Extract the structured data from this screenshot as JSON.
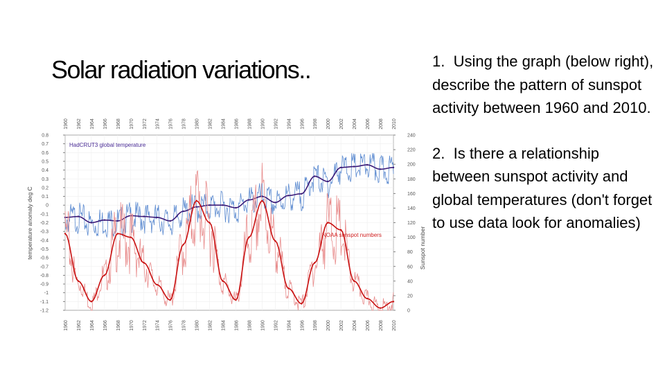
{
  "slide": {
    "title": "Solar radiation variations..",
    "questions": [
      {
        "number": "1.",
        "text": "Using the graph (below right), describe the pattern of sunspot activity between 1960 and 2010."
      },
      {
        "number": "2.",
        "text": "Is there a relationship between sunspot activity and global temperatures (don't forget to use data look for anomalies)"
      }
    ]
  },
  "chart_data": {
    "type": "line",
    "x_ticks": [
      "1960",
      "1962",
      "1964",
      "1966",
      "1968",
      "1970",
      "1972",
      "1974",
      "1976",
      "1978",
      "1980",
      "1982",
      "1984",
      "1986",
      "1988",
      "1990",
      "1992",
      "1994",
      "1996",
      "1998",
      "2000",
      "2002",
      "2004",
      "2006",
      "2008",
      "2010"
    ],
    "xlim": [
      1960,
      2010
    ],
    "left_axis": {
      "label": "temperature anomaly deg C",
      "ticks": [
        "0.8",
        "0.7",
        "0.6",
        "0.5",
        "0.4",
        "0.3",
        "0.2",
        "0.1",
        "0",
        "-0.1",
        "-0.2",
        "-0.3",
        "-0.4",
        "-0.5",
        "-0.6",
        "-0.7",
        "-0.8",
        "-0.9",
        "-1",
        "-1.1",
        "-1.2"
      ],
      "ylim": [
        -1.2,
        0.8
      ]
    },
    "right_axis": {
      "label": "Sunspot number",
      "ticks": [
        "240",
        "220",
        "200",
        "180",
        "160",
        "140",
        "120",
        "100",
        "80",
        "60",
        "40",
        "20",
        "0"
      ],
      "ylim": [
        0,
        240
      ]
    },
    "series": [
      {
        "name": "HadCRUT3 global temperature",
        "axis": "left",
        "color": "#5b8ad0",
        "smooth_color": "#3a1a78",
        "x": [
          1960,
          1962,
          1964,
          1966,
          1968,
          1970,
          1972,
          1974,
          1976,
          1978,
          1980,
          1982,
          1984,
          1986,
          1988,
          1990,
          1992,
          1994,
          1996,
          1998,
          2000,
          2002,
          2004,
          2006,
          2008,
          2010
        ],
        "y": [
          -0.14,
          -0.13,
          -0.2,
          -0.17,
          -0.18,
          -0.12,
          -0.13,
          -0.14,
          -0.18,
          -0.07,
          -0.02,
          0.0,
          0.0,
          -0.03,
          0.06,
          0.1,
          0.03,
          0.11,
          0.13,
          0.33,
          0.27,
          0.43,
          0.44,
          0.46,
          0.41,
          0.43
        ]
      },
      {
        "name": "NOAA sunspot numbers",
        "axis": "right",
        "color": "#e88b8b",
        "smooth_color": "#c81010",
        "x": [
          1960,
          1962,
          1964,
          1966,
          1968,
          1970,
          1972,
          1974,
          1976,
          1978,
          1980,
          1982,
          1984,
          1986,
          1988,
          1990,
          1992,
          1994,
          1996,
          1998,
          2000,
          2002,
          2004,
          2006,
          2008,
          2010
        ],
        "y": [
          105,
          40,
          12,
          48,
          105,
          100,
          65,
          35,
          14,
          90,
          150,
          120,
          40,
          14,
          100,
          150,
          95,
          30,
          9,
          65,
          120,
          110,
          40,
          16,
          3,
          12
        ]
      }
    ],
    "legend": [
      "HadCRUT3 global temperature",
      "NOAA sunspot numbers"
    ]
  }
}
